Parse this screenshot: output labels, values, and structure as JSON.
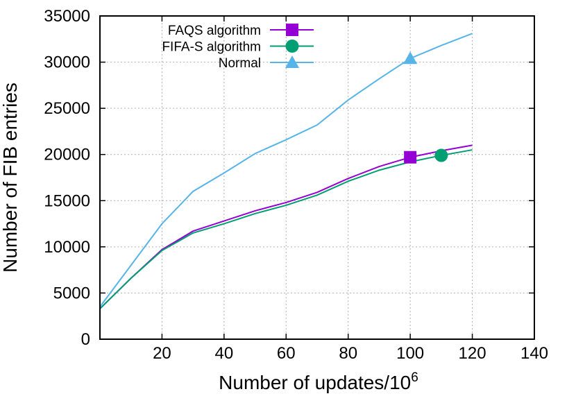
{
  "chart_data": {
    "type": "line",
    "xlabel": "Number of updates/10",
    "xlabel_superscript": "6",
    "ylabel": "Number of FIB entries",
    "xlim": [
      0,
      140
    ],
    "ylim": [
      0,
      35000
    ],
    "xticks": [
      20,
      40,
      60,
      80,
      100,
      120,
      140
    ],
    "yticks": [
      0,
      5000,
      10000,
      15000,
      20000,
      25000,
      30000,
      35000
    ],
    "grid": true,
    "legend_position": "top-left",
    "series": [
      {
        "name": "FAQS algorithm",
        "color": "#9400d3",
        "marker": "square",
        "marker_x": 100,
        "x": [
          0,
          10,
          20,
          30,
          40,
          50,
          60,
          70,
          80,
          90,
          100,
          110,
          120
        ],
        "values": [
          3300,
          6600,
          9700,
          11700,
          12800,
          13900,
          14800,
          15900,
          17400,
          18700,
          19700,
          20400,
          21000
        ]
      },
      {
        "name": "FIFA-S algorithm",
        "color": "#009e73",
        "marker": "circle",
        "marker_x": 110,
        "x": [
          0,
          10,
          20,
          30,
          40,
          50,
          60,
          70,
          80,
          90,
          100,
          110,
          120
        ],
        "values": [
          3300,
          6600,
          9600,
          11500,
          12500,
          13600,
          14500,
          15600,
          17100,
          18300,
          19200,
          19900,
          20500
        ]
      },
      {
        "name": "Normal",
        "color": "#56b4e9",
        "marker": "triangle",
        "marker_x": 100,
        "x": [
          0,
          10,
          20,
          30,
          40,
          50,
          60,
          70,
          80,
          90,
          100,
          110,
          120
        ],
        "values": [
          3500,
          8000,
          12500,
          16000,
          18000,
          20100,
          21600,
          23200,
          25900,
          28200,
          30400,
          31800,
          33100
        ]
      }
    ]
  }
}
